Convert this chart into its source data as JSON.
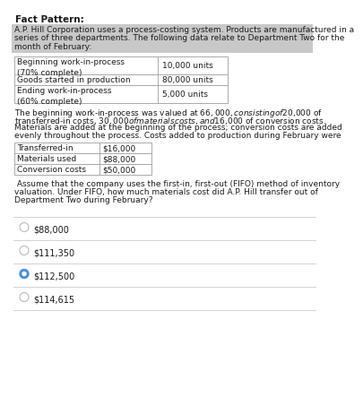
{
  "title": "Fact Pattern:",
  "intro_lines": [
    "A.P. Hill Corporation uses a process-costing system. Products are manufactured in a",
    "series of three departments. The following data relate to Department Two for the",
    "month of February:"
  ],
  "table1_rows": [
    [
      "Beginning work-in-process\n(70% complete)",
      "10,000 units"
    ],
    [
      "Goods started in production",
      "80,000 units"
    ],
    [
      "Ending work-in-process\n(60% complete)",
      "5,000 units"
    ]
  ],
  "para_lines": [
    "The beginning work-in-process was valued at $66,000, consisting of $20,000 of",
    "transferred-in costs, $30,000 of materials costs, and $16,000 of conversion costs.",
    "Materials are added at the beginning of the process; conversion costs are added",
    "evenly throughout the process. Costs added to production during February were"
  ],
  "table2_rows": [
    [
      "Transferred-in",
      "$16,000"
    ],
    [
      "Materials used",
      "$88,000"
    ],
    [
      "Conversion costs",
      "$50,000"
    ]
  ],
  "q_lines": [
    " Assume that the company uses the first-in, first-out (FIFO) method of inventory",
    "valuation. Under FIFO, how much materials cost did A.P. Hill transfer out of",
    "Department Two during February?"
  ],
  "options": [
    "$88,000",
    "$111,350",
    "$112,500",
    "$114,615"
  ],
  "selected_option": 2,
  "highlight_color": "#c8c8c8",
  "table_border_color": "#aaaaaa",
  "bg_color": "#ffffff",
  "text_color": "#1a1a1a",
  "option_circle_color": "#4a90d9",
  "separator_color": "#cccccc",
  "fs": 6.5,
  "fs_title": 7.5,
  "fs_option": 7.0
}
